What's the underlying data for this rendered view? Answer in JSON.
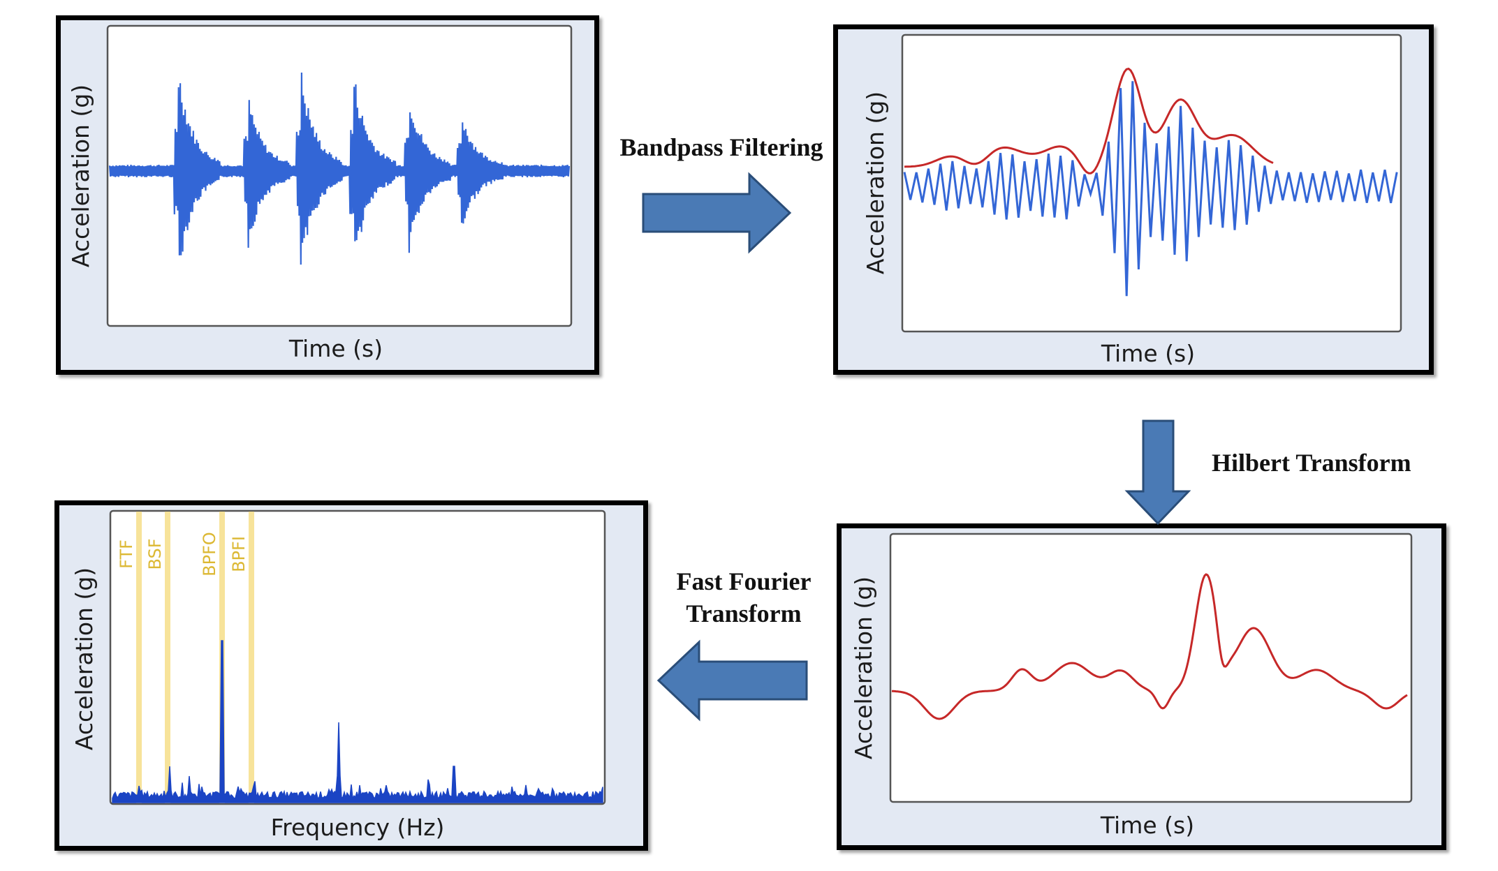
{
  "colors": {
    "signal": "#3366d6",
    "envelope": "#c62828",
    "marker_band": "#f7e39a",
    "spectrum": "#1b44c4",
    "arrow_fill": "#4a7ab5",
    "arrow_stroke": "#2a4d78"
  },
  "panels": {
    "raw": {
      "ylabel": "Acceleration (g)",
      "xlabel": "Time (s)"
    },
    "filtered": {
      "ylabel": "Acceleration (g)",
      "xlabel": "Time (s)"
    },
    "envelope": {
      "ylabel": "Acceleration (g)",
      "xlabel": "Time (s)"
    },
    "spectrum": {
      "ylabel": "Acceleration (g)",
      "xlabel": "Frequency (Hz)",
      "markers": [
        "FTF",
        "BSF",
        "BPFO",
        "BPFI"
      ]
    }
  },
  "steps": {
    "bandpass": "Bandpass Filtering",
    "hilbert": "Hilbert Transform",
    "fft_line1": "Fast Fourier",
    "fft_line2": "Transform"
  },
  "icons": {
    "step1": "arrow-right-icon",
    "step2": "arrow-down-icon",
    "step3": "arrow-left-icon"
  }
}
